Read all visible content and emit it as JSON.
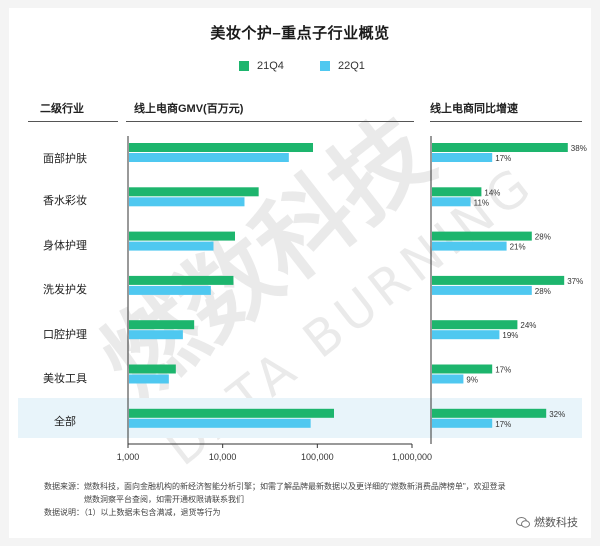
{
  "header": {
    "title": "美妆个护–重点子行业概览"
  },
  "columns": {
    "category": "二级行业",
    "gmv": "线上电商GMV(百万元)",
    "growth": "线上电商同比增速"
  },
  "colors": {
    "q4": "#1db56d",
    "q1": "#4fc8f0"
  },
  "chart_data": [
    {
      "type": "bar",
      "scale": "log",
      "xlim": [
        1000,
        1000000
      ],
      "xticks": [
        "1,000",
        "10,000",
        "100,000",
        "1,000,000"
      ],
      "categories": [
        "面部护肤",
        "香水彩妆",
        "身体护理",
        "洗发护发",
        "口腔护理",
        "美妆工具",
        "全部"
      ],
      "series": [
        {
          "name": "21Q4",
          "values": [
            90000,
            24000,
            13500,
            13000,
            5000,
            3200,
            150000
          ]
        },
        {
          "name": "22Q1",
          "values": [
            50000,
            17000,
            8000,
            7500,
            3800,
            2700,
            85000
          ]
        }
      ]
    },
    {
      "type": "bar",
      "xlim": [
        0,
        40
      ],
      "categories": [
        "面部护肤",
        "香水彩妆",
        "身体护理",
        "洗发护发",
        "口腔护理",
        "美妆工具",
        "全部"
      ],
      "series": [
        {
          "name": "21Q4",
          "values": [
            38,
            14,
            28,
            37,
            24,
            17,
            32
          ],
          "labels": [
            "38%",
            "14%",
            "28%",
            "37%",
            "24%",
            "17%",
            "32%"
          ]
        },
        {
          "name": "22Q1",
          "values": [
            17,
            11,
            21,
            28,
            19,
            9,
            17
          ],
          "labels": [
            "17%",
            "11%",
            "21%",
            "28%",
            "19%",
            "9%",
            "17%"
          ]
        }
      ]
    }
  ],
  "footer": {
    "source_line1": "数据来源：燃数科技，面向金融机构的新经济智能分析引擎；如需了解品牌最新数据以及更详细的\"燃数新消费品牌榜单\"，欢迎登录",
    "source_line2": "燃数洞察平台查阅，如需开通权限请联系我们",
    "note": "数据说明：（1）以上数据未包含满减，退货等行为",
    "brand": "燃数科技"
  },
  "watermark": {
    "cn": "燃数科技",
    "en": "DATA BURNING"
  }
}
